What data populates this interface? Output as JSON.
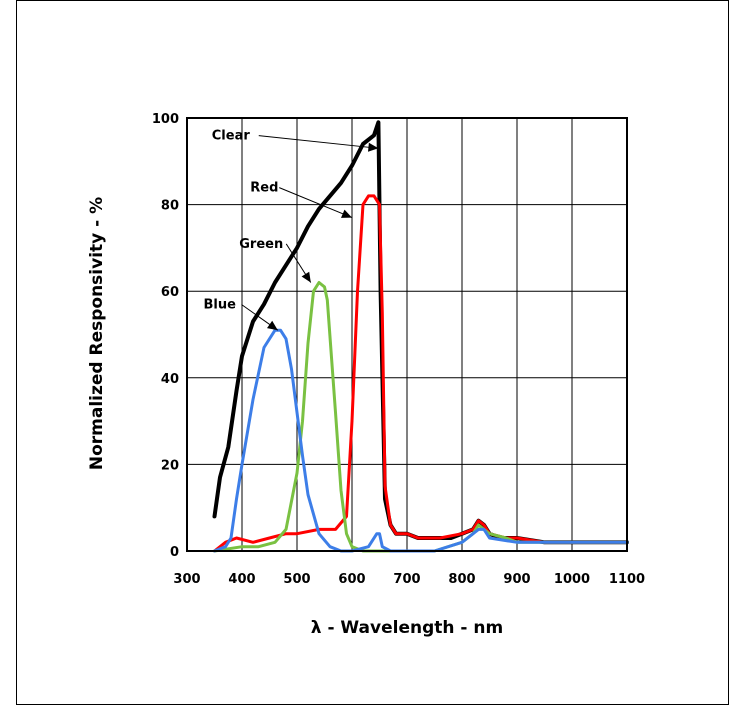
{
  "chart_data": {
    "type": "line",
    "title": "",
    "xlabel": "λ - Wavelength - nm",
    "ylabel": "Normalized Responsivity - %",
    "xlim": [
      300,
      1100
    ],
    "ylim": [
      0,
      100
    ],
    "xticks": [
      "300",
      "400",
      "500",
      "600",
      "700",
      "800",
      "900",
      "1000",
      "1100"
    ],
    "yticks": [
      "0",
      "20",
      "40",
      "60",
      "80",
      "100"
    ],
    "grid": true,
    "legend": "none",
    "series": [
      {
        "name": "Clear",
        "color": "#000000",
        "x": [
          350,
          360,
          375,
          390,
          400,
          410,
          420,
          440,
          460,
          480,
          500,
          520,
          540,
          560,
          580,
          600,
          620,
          640,
          648,
          652,
          660,
          670,
          680,
          700,
          720,
          750,
          780,
          800,
          820,
          830,
          840,
          850,
          870,
          900,
          950,
          1000,
          1050,
          1100
        ],
        "y": [
          8,
          17,
          24,
          37,
          45,
          49,
          53,
          57,
          62,
          66,
          70,
          75,
          79,
          82,
          85,
          89,
          94,
          96,
          99,
          60,
          12,
          6,
          4,
          4,
          3,
          3,
          3,
          4,
          5,
          7,
          6,
          4,
          3,
          3,
          2,
          2,
          2,
          2
        ]
      },
      {
        "name": "Red",
        "color": "#ff0000",
        "x": [
          350,
          370,
          390,
          420,
          450,
          480,
          500,
          540,
          570,
          590,
          600,
          610,
          620,
          630,
          640,
          650,
          655,
          660,
          670,
          680,
          700,
          720,
          760,
          800,
          820,
          830,
          840,
          850,
          880,
          900,
          950,
          1000,
          1050,
          1100
        ],
        "y": [
          0,
          2,
          3,
          2,
          3,
          4,
          4,
          5,
          5,
          8,
          30,
          60,
          80,
          82,
          82,
          80,
          55,
          15,
          6,
          4,
          4,
          3,
          3,
          4,
          5,
          7,
          6,
          4,
          3,
          3,
          2,
          2,
          2,
          2
        ]
      },
      {
        "name": "Green",
        "color": "#7ac142",
        "x": [
          350,
          400,
          430,
          460,
          480,
          500,
          510,
          520,
          530,
          540,
          550,
          555,
          570,
          580,
          590,
          600,
          620,
          650,
          700,
          750,
          800,
          820,
          830,
          840,
          850,
          880,
          900,
          950,
          1000,
          1050,
          1100
        ],
        "y": [
          0,
          1,
          1,
          2,
          5,
          18,
          30,
          48,
          60,
          62,
          61,
          58,
          32,
          14,
          4,
          1,
          0,
          0,
          0,
          0,
          2,
          4,
          6,
          5,
          4,
          3,
          2,
          2,
          2,
          2,
          2
        ]
      },
      {
        "name": "Blue",
        "color": "#3d7ee8",
        "x": [
          350,
          370,
          380,
          390,
          400,
          420,
          440,
          460,
          470,
          480,
          490,
          500,
          510,
          520,
          540,
          560,
          580,
          600,
          630,
          645,
          650,
          655,
          670,
          700,
          750,
          800,
          830,
          840,
          850,
          900,
          950,
          1000,
          1050,
          1100
        ],
        "y": [
          0,
          1,
          3,
          12,
          20,
          35,
          47,
          51,
          51,
          49,
          42,
          32,
          22,
          13,
          4,
          1,
          0,
          0,
          1,
          4,
          4,
          1,
          0,
          0,
          0,
          2,
          5,
          5,
          3,
          2,
          2,
          2,
          2,
          2
        ]
      }
    ],
    "annotations": [
      {
        "label": "Clear",
        "text_x": 345,
        "text_y": 95,
        "arrow_x": 648,
        "arrow_y": 93
      },
      {
        "label": "Red",
        "text_x": 415,
        "text_y": 83,
        "arrow_x": 600,
        "arrow_y": 77
      },
      {
        "label": "Green",
        "text_x": 395,
        "text_y": 70,
        "arrow_x": 525,
        "arrow_y": 62
      },
      {
        "label": "Blue",
        "text_x": 330,
        "text_y": 56,
        "arrow_x": 465,
        "arrow_y": 51
      }
    ]
  }
}
